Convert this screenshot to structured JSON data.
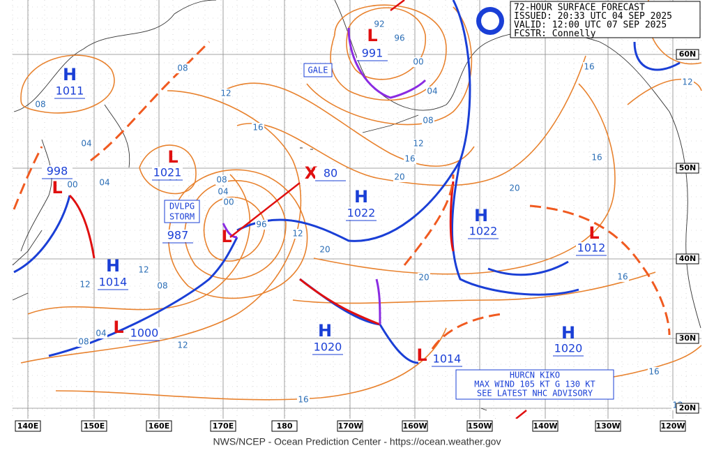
{
  "header": {
    "title": "72-HOUR SURFACE FORECAST",
    "issued": "ISSUED: 20:33 UTC 04 SEP 2025",
    "valid": "VALID:  12:00 UTC 07 SEP 2025",
    "forecaster": "FCSTR:  Connelly"
  },
  "footer": "NWS/NCEP - Ocean Prediction Center - https://ocean.weather.gov",
  "longitudes": [
    "140E",
    "150E",
    "160E",
    "170E",
    "180",
    "170W",
    "160W",
    "150W",
    "140W",
    "130W",
    "120W"
  ],
  "latitudes": [
    "60N",
    "50N",
    "40N",
    "30N",
    "20N"
  ],
  "pressure_centers": [
    {
      "symbol": "H",
      "pressure": "1011"
    },
    {
      "symbol": "L",
      "pressure": "998"
    },
    {
      "symbol": "L",
      "pressure": "1021"
    },
    {
      "symbol": "L",
      "pressure": "987"
    },
    {
      "symbol": "L",
      "pressure": "1000"
    },
    {
      "symbol": "H",
      "pressure": "1014"
    },
    {
      "symbol": "L",
      "pressure": "991"
    },
    {
      "symbol": "H",
      "pressure": "1022"
    },
    {
      "symbol": "H",
      "pressure": "1022"
    },
    {
      "symbol": "L",
      "pressure": "1012"
    },
    {
      "symbol": "H",
      "pressure": "1020"
    },
    {
      "symbol": "L",
      "pressure": "1014"
    },
    {
      "symbol": "H",
      "pressure": "1020"
    },
    {
      "symbol": "X",
      "pressure": "80"
    }
  ],
  "warnings": {
    "gale": "GALE",
    "storm": [
      "DVLPG",
      "STORM"
    ],
    "hurricane": [
      "HURCN KIKO",
      "MAX WIND 105 KT G 130 KT",
      "SEE LATEST NHC ADVISORY"
    ]
  },
  "isobar_labels": [
    "08",
    "08",
    "08",
    "08",
    "08",
    "08",
    "08",
    "04",
    "04",
    "04",
    "04",
    "04",
    "04",
    "00",
    "00",
    "00",
    "92",
    "96",
    "96",
    "12",
    "12",
    "12",
    "12",
    "12",
    "12",
    "12",
    "12",
    "16",
    "16",
    "16",
    "16",
    "16",
    "16",
    "16",
    "20",
    "20",
    "20",
    "20"
  ]
}
